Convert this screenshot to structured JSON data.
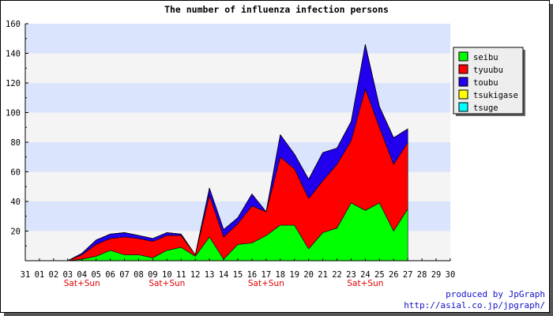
{
  "chart_data": {
    "type": "area",
    "stacked": true,
    "title": "The number of influenza infection persons",
    "xlabel": "",
    "ylabel": "",
    "ylim": [
      0,
      160
    ],
    "yticks": [
      20,
      40,
      60,
      80,
      100,
      120,
      140,
      160
    ],
    "grid": "horizontal bands",
    "legend_position": "right",
    "x": [
      "31",
      "01",
      "02",
      "03",
      "04",
      "05",
      "06",
      "07",
      "08",
      "09",
      "10",
      "11",
      "12",
      "13",
      "14",
      "15",
      "16",
      "17",
      "18",
      "19",
      "20",
      "21",
      "22",
      "23",
      "24",
      "25",
      "26",
      "27",
      "28",
      "29",
      "30"
    ],
    "weekend_label": "Sat+Sun",
    "weekend_ticks": [
      "04",
      "10",
      "17",
      "24"
    ],
    "series": [
      {
        "name": "seibu",
        "color": "#00ff00",
        "values": [
          0,
          0,
          0,
          0,
          1,
          3,
          7,
          4,
          4,
          2,
          7,
          9,
          3,
          16,
          1,
          11,
          12,
          17,
          24,
          24,
          8,
          19,
          22,
          39,
          34,
          39,
          20,
          35,
          null,
          null,
          null
        ]
      },
      {
        "name": "tyuubu",
        "color": "#ff0000",
        "values": [
          0,
          0,
          0,
          0,
          3,
          8,
          8,
          12,
          11,
          11,
          10,
          8,
          1,
          28,
          15,
          14,
          25,
          16,
          46,
          38,
          34,
          35,
          43,
          42,
          82,
          51,
          45,
          45,
          null,
          null,
          null
        ]
      },
      {
        "name": "toubu",
        "color": "#2200ee",
        "values": [
          0,
          0,
          0,
          0,
          1,
          3,
          3,
          3,
          2,
          2,
          2,
          1,
          0,
          5,
          5,
          4,
          8,
          0,
          15,
          10,
          13,
          19,
          11,
          13,
          30,
          14,
          18,
          9,
          null,
          null,
          null
        ]
      },
      {
        "name": "tsukigase",
        "color": "#ffff00",
        "values": [
          0,
          0,
          0,
          0,
          0,
          0,
          0,
          0,
          0,
          0,
          0,
          0,
          0,
          0,
          0,
          0,
          0,
          0,
          0,
          0,
          0,
          0,
          0,
          0,
          0,
          0,
          0,
          0,
          null,
          null,
          null
        ]
      },
      {
        "name": "tsuge",
        "color": "#00ffff",
        "values": [
          0,
          0,
          0,
          0,
          0,
          0,
          0,
          0,
          0,
          0,
          0,
          0,
          0,
          0,
          0,
          0,
          0,
          0,
          0,
          0,
          0,
          0,
          0,
          0,
          0,
          0,
          0,
          0,
          null,
          null,
          null
        ]
      }
    ]
  },
  "credits": {
    "line1": "produced by JpGraph",
    "line2": "http://asial.co.jp/jpgraph/"
  }
}
